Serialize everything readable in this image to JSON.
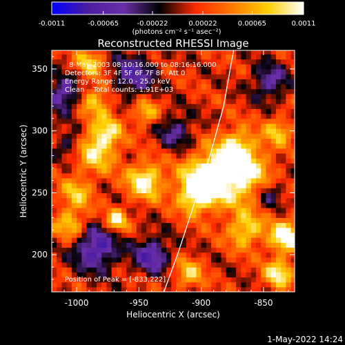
{
  "chart_data": {
    "type": "heatmap",
    "title": "Reconstructed RHESSI Image",
    "xlabel": "Heliocentric X (arcsec)",
    "ylabel": "Heliocentric Y (arcsec)",
    "xlim": [
      -1020,
      -825
    ],
    "ylim": [
      170,
      365
    ],
    "x_ticks": [
      -1000,
      -950,
      -900,
      -850
    ],
    "y_ticks": [
      200,
      250,
      300,
      350
    ],
    "colorbar": {
      "range": [
        -0.0011,
        0.0011
      ],
      "tick_values": [
        -0.0011,
        -0.00065,
        -0.00022,
        0.00022,
        0.00065,
        0.0011
      ],
      "tick_labels": [
        "-0.0011",
        "-0.00065",
        "-0.00022",
        "0.00022",
        "0.00065",
        "0.0011"
      ],
      "units_label": "(photons cm⁻² s⁻¹ asec⁻²)",
      "stops": [
        "#0000ff",
        "#4b1ea0",
        "#6a2fa8",
        "#000000",
        "#ff2a00",
        "#ff7800",
        "#ffd000",
        "#ffffff"
      ]
    },
    "annotations": [
      "8-May-2003 08:10:16.000 to 08:16:16.000",
      "Detectors: 3F 4F 5F 6F 7F 8F, Att 0",
      "Energy Range: 12.0 - 25.0 keV",
      "Clean    Total counts: 1.91E+03"
    ],
    "peak": {
      "label": "Position of Peak = [-833,222]",
      "x": -833,
      "y": 222
    },
    "limb_curve": [
      [
        -930,
        170
      ],
      [
        -919,
        200
      ],
      [
        -906,
        240
      ],
      [
        -893,
        280
      ],
      [
        -882,
        320
      ],
      [
        -874,
        365
      ]
    ],
    "sources": [
      {
        "x": -895,
        "y": 262,
        "amplitude": 1.0,
        "sigma": 14
      },
      {
        "x": -905,
        "y": 248,
        "amplitude": 0.7,
        "sigma": 10
      },
      {
        "x": -867,
        "y": 265,
        "amplitude": 0.85,
        "sigma": 16
      },
      {
        "x": -872,
        "y": 288,
        "amplitude": 0.6,
        "sigma": 10
      },
      {
        "x": -945,
        "y": 260,
        "amplitude": 0.9,
        "sigma": 10
      },
      {
        "x": -985,
        "y": 285,
        "amplitude": 0.75,
        "sigma": 12
      },
      {
        "x": -975,
        "y": 300,
        "amplitude": 0.55,
        "sigma": 8
      },
      {
        "x": -985,
        "y": 325,
        "amplitude": 0.55,
        "sigma": 10
      },
      {
        "x": -1000,
        "y": 250,
        "amplitude": 0.55,
        "sigma": 9
      },
      {
        "x": -1005,
        "y": 225,
        "amplitude": 0.6,
        "sigma": 9
      },
      {
        "x": -968,
        "y": 228,
        "amplitude": 0.8,
        "sigma": 6
      },
      {
        "x": -945,
        "y": 315,
        "amplitude": 0.6,
        "sigma": 7
      },
      {
        "x": -865,
        "y": 220,
        "amplitude": 0.7,
        "sigma": 10
      },
      {
        "x": -832,
        "y": 215,
        "amplitude": 1.0,
        "sigma": 9
      },
      {
        "x": -838,
        "y": 185,
        "amplitude": 0.8,
        "sigma": 8
      },
      {
        "x": -838,
        "y": 300,
        "amplitude": 0.55,
        "sigma": 8
      },
      {
        "x": -910,
        "y": 185,
        "amplitude": 0.6,
        "sigma": 8
      },
      {
        "x": -990,
        "y": 355,
        "amplitude": 0.6,
        "sigma": 8
      }
    ],
    "negative_regions": [
      {
        "x": -985,
        "y": 205,
        "amplitude": 0.85,
        "sigma": 12
      },
      {
        "x": -940,
        "y": 200,
        "amplitude": 0.75,
        "sigma": 10
      },
      {
        "x": -1010,
        "y": 330,
        "amplitude": 0.7,
        "sigma": 10
      },
      {
        "x": -955,
        "y": 345,
        "amplitude": 0.65,
        "sigma": 12
      },
      {
        "x": -1005,
        "y": 290,
        "amplitude": 0.5,
        "sigma": 8
      },
      {
        "x": -845,
        "y": 340,
        "amplitude": 0.6,
        "sigma": 10
      },
      {
        "x": -845,
        "y": 250,
        "amplitude": 0.5,
        "sigma": 8
      },
      {
        "x": -920,
        "y": 300,
        "amplitude": 0.5,
        "sigma": 10
      }
    ]
  },
  "footer": {
    "timestamp": "1-May-2022 14:24"
  }
}
